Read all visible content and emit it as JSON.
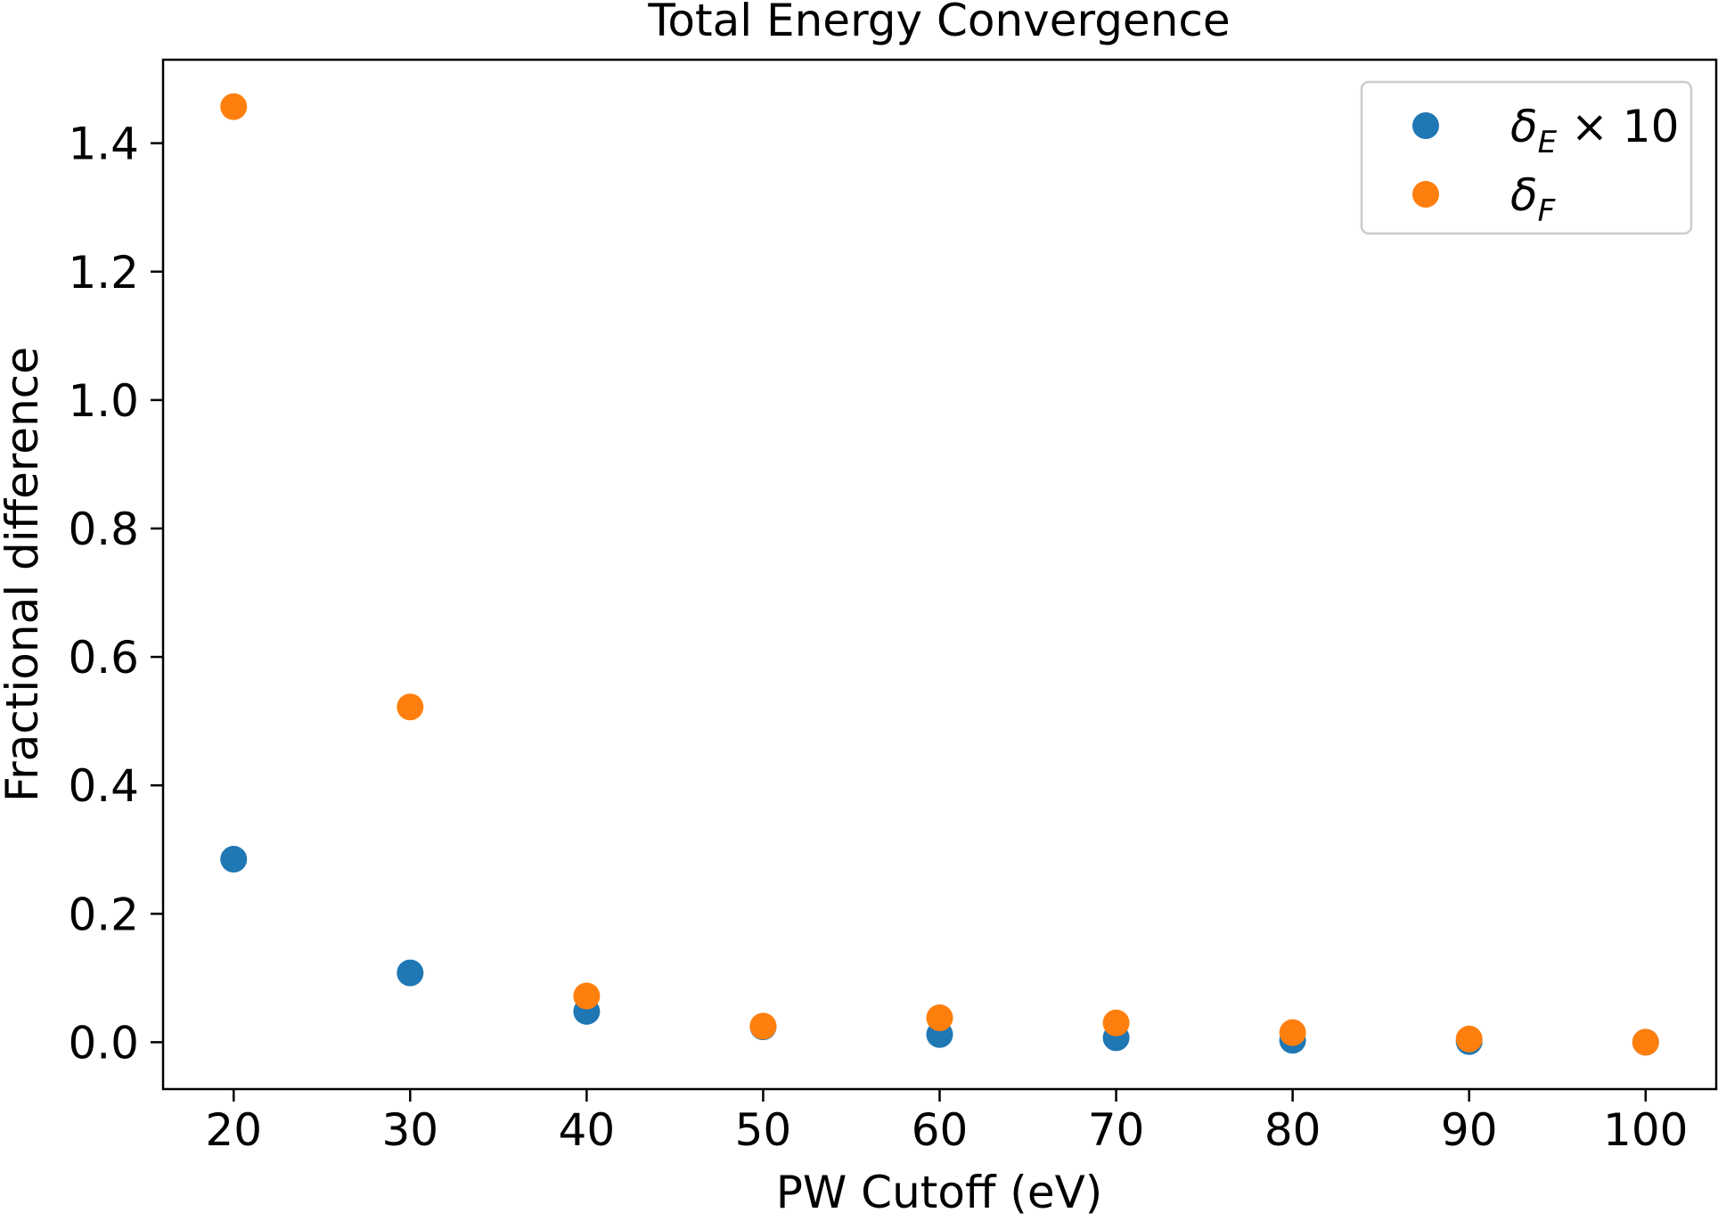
{
  "chart_data": {
    "type": "scatter",
    "title": "Total Energy Convergence",
    "xlabel": "PW Cutoff (eV)",
    "ylabel": "Fractional difference",
    "xlim": [
      16,
      104
    ],
    "ylim": [
      -0.073,
      1.53
    ],
    "xticks": [
      20,
      30,
      40,
      50,
      60,
      70,
      80,
      90,
      100
    ],
    "yticks": [
      0.0,
      0.2,
      0.4,
      0.6,
      0.8,
      1.0,
      1.2,
      1.4
    ],
    "grid": false,
    "legend_position": "top-right",
    "series": [
      {
        "name": "δE × 10",
        "label_main": "δ",
        "label_sub": "E",
        "label_tail": " × 10",
        "color": "#1f77b4",
        "x": [
          20,
          30,
          40,
          50,
          60,
          70,
          80,
          90,
          100
        ],
        "y": [
          0.285,
          0.108,
          0.048,
          0.024,
          0.012,
          0.007,
          0.003,
          0.001,
          0.0
        ]
      },
      {
        "name": "δF",
        "label_main": "δ",
        "label_sub": "F",
        "label_tail": "",
        "color": "#ff7f0e",
        "x": [
          20,
          30,
          40,
          50,
          60,
          70,
          80,
          90,
          100
        ],
        "y": [
          1.457,
          0.522,
          0.072,
          0.025,
          0.038,
          0.03,
          0.015,
          0.005,
          0.0
        ]
      }
    ]
  }
}
